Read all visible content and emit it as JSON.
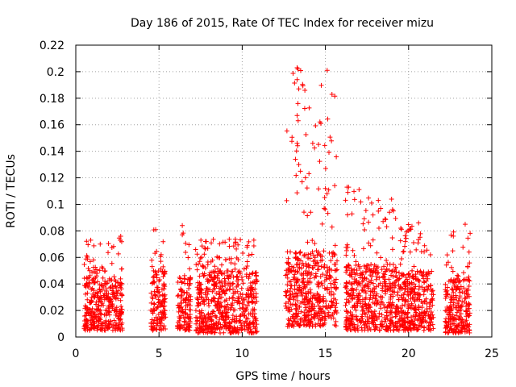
{
  "chart_data": {
    "type": "scatter",
    "title": "Day 186 of 2015, Rate Of TEC Index for receiver mizu",
    "xlabel": "GPS time / hours",
    "ylabel": "ROTI / TECUs",
    "xlim": [
      0,
      25
    ],
    "ylim": [
      0,
      0.22
    ],
    "xticks": [
      0,
      5,
      10,
      15,
      20,
      25
    ],
    "xtick_labels": [
      "0",
      "5",
      "10",
      "15",
      "20",
      "25"
    ],
    "yticks": [
      0,
      0.02,
      0.04,
      0.06,
      0.08,
      0.1,
      0.12,
      0.14,
      0.16,
      0.18,
      0.2,
      0.22
    ],
    "ytick_labels": [
      "0",
      "0.02",
      "0.04",
      "0.06",
      "0.08",
      "0.1",
      "0.12",
      "0.14",
      "0.16",
      "0.18",
      "0.2",
      "0.22"
    ],
    "grid": true,
    "marker": "+",
    "series": [
      {
        "name": "ROTI",
        "color": "#ff0000",
        "clusters": [
          {
            "x_range": [
              0.5,
              2.8
            ],
            "y_base": [
              0.005,
              0.045
            ],
            "y_peak": 0.076
          },
          {
            "x_range": [
              4.5,
              5.4
            ],
            "y_base": [
              0.005,
              0.05
            ],
            "y_peak": 0.081
          },
          {
            "x_range": [
              6.1,
              6.9
            ],
            "y_base": [
              0.005,
              0.045
            ],
            "y_peak": 0.084
          },
          {
            "x_range": [
              7.2,
              10.9
            ],
            "y_base": [
              0.003,
              0.05
            ],
            "y_peak": 0.074
          },
          {
            "x_range": [
              12.6,
              15.7
            ],
            "y_base": [
              0.008,
              0.065
            ],
            "y_peak": 0.203
          },
          {
            "x_range": [
              16.2,
              19.3
            ],
            "y_base": [
              0.005,
              0.055
            ],
            "y_peak": 0.113
          },
          {
            "x_range": [
              19.3,
              21.5
            ],
            "y_base": [
              0.005,
              0.05
            ],
            "y_peak": 0.086
          },
          {
            "x_range": [
              22.2,
              23.7
            ],
            "y_base": [
              0.003,
              0.045
            ],
            "y_peak": 0.085
          }
        ],
        "peaks": [
          {
            "x": 13.3,
            "y": 0.203
          },
          {
            "x": 13.35,
            "y": 0.202
          },
          {
            "x": 13.3,
            "y": 0.194
          },
          {
            "x": 13.4,
            "y": 0.187
          },
          {
            "x": 13.35,
            "y": 0.176
          },
          {
            "x": 13.3,
            "y": 0.167
          },
          {
            "x": 13.3,
            "y": 0.146
          },
          {
            "x": 13.4,
            "y": 0.13
          },
          {
            "x": 13.5,
            "y": 0.125
          },
          {
            "x": 13.6,
            "y": 0.117
          },
          {
            "x": 13.8,
            "y": 0.12
          },
          {
            "x": 13.2,
            "y": 0.134
          },
          {
            "x": 15.0,
            "y": 0.112
          },
          {
            "x": 15.1,
            "y": 0.108
          },
          {
            "x": 16.3,
            "y": 0.113
          },
          {
            "x": 16.35,
            "y": 0.109
          },
          {
            "x": 0.9,
            "y": 0.073
          },
          {
            "x": 2.7,
            "y": 0.076
          },
          {
            "x": 4.8,
            "y": 0.081
          },
          {
            "x": 6.4,
            "y": 0.084
          },
          {
            "x": 10.7,
            "y": 0.073
          },
          {
            "x": 20.6,
            "y": 0.086
          },
          {
            "x": 23.4,
            "y": 0.085
          }
        ]
      }
    ]
  }
}
